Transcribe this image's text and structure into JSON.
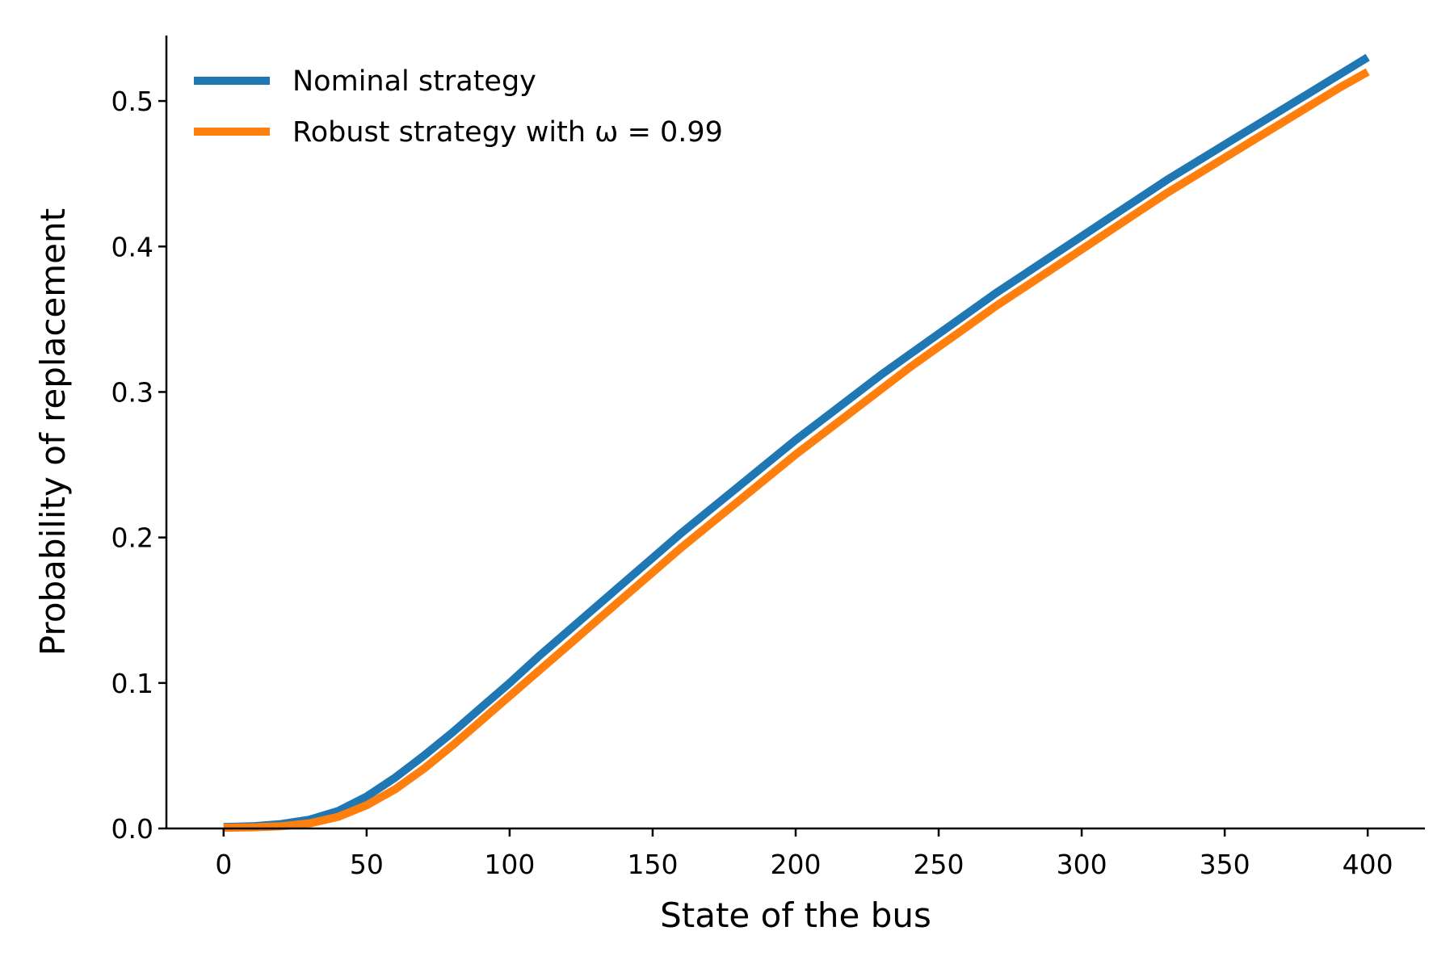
{
  "chart_data": {
    "type": "line",
    "title": "",
    "xlabel": "State of the bus",
    "ylabel": "Probability of replacement",
    "xlim": [
      -20,
      420
    ],
    "ylim": [
      0.0,
      0.545
    ],
    "xticks": [
      0,
      50,
      100,
      150,
      200,
      250,
      300,
      350,
      400
    ],
    "yticks": [
      0.0,
      0.1,
      0.2,
      0.3,
      0.4,
      0.5
    ],
    "xtick_labels": [
      "0",
      "50",
      "100",
      "150",
      "200",
      "250",
      "300",
      "350",
      "400"
    ],
    "ytick_labels": [
      "0.0",
      "0.1",
      "0.2",
      "0.3",
      "0.4",
      "0.5"
    ],
    "grid": false,
    "legend_position": "top-left",
    "x": [
      0,
      10,
      20,
      30,
      40,
      50,
      60,
      70,
      80,
      90,
      100,
      110,
      120,
      130,
      140,
      150,
      160,
      170,
      180,
      190,
      200,
      210,
      220,
      230,
      240,
      250,
      260,
      270,
      280,
      290,
      300,
      310,
      320,
      330,
      340,
      350,
      360,
      370,
      380,
      390,
      400
    ],
    "series": [
      {
        "name": "Nominal strategy",
        "color": "#1f77b4",
        "values": [
          0.001,
          0.0015,
          0.003,
          0.006,
          0.012,
          0.022,
          0.035,
          0.05,
          0.066,
          0.083,
          0.1,
          0.118,
          0.135,
          0.152,
          0.169,
          0.186,
          0.203,
          0.219,
          0.235,
          0.251,
          0.267,
          0.282,
          0.297,
          0.312,
          0.326,
          0.34,
          0.354,
          0.368,
          0.381,
          0.394,
          0.407,
          0.42,
          0.433,
          0.446,
          0.458,
          0.47,
          0.482,
          0.494,
          0.506,
          0.518,
          0.53
        ]
      },
      {
        "name": "Robust strategy with ω = 0.99",
        "color": "#ff7f0e",
        "values": [
          0.0005,
          0.0008,
          0.0015,
          0.0035,
          0.008,
          0.016,
          0.027,
          0.041,
          0.057,
          0.074,
          0.091,
          0.108,
          0.125,
          0.142,
          0.159,
          0.176,
          0.193,
          0.209,
          0.225,
          0.241,
          0.257,
          0.272,
          0.287,
          0.302,
          0.317,
          0.331,
          0.345,
          0.359,
          0.372,
          0.385,
          0.398,
          0.411,
          0.424,
          0.437,
          0.449,
          0.461,
          0.473,
          0.485,
          0.497,
          0.509,
          0.52
        ]
      }
    ]
  }
}
